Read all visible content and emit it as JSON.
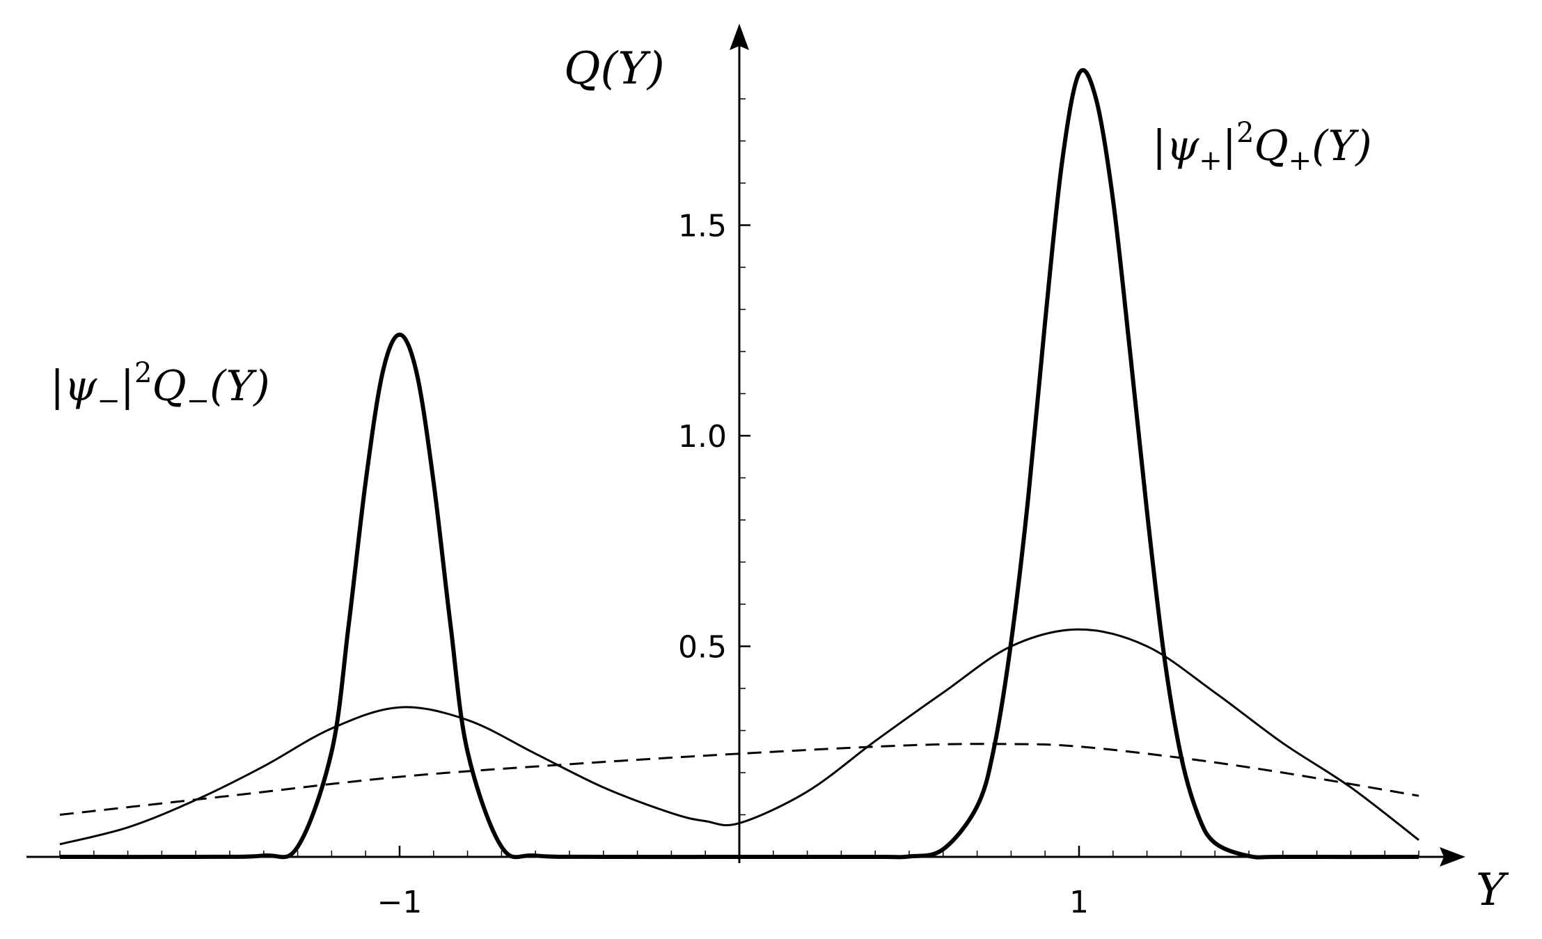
{
  "chart_data": {
    "type": "line",
    "title": "",
    "xlabel": "Y",
    "ylabel": "Q(Y)",
    "xlim": [
      -2,
      2
    ],
    "ylim": [
      0,
      1.9
    ],
    "xticks": [
      {
        "value": -1,
        "label": "−1"
      },
      {
        "value": 1,
        "label": "1"
      }
    ],
    "yticks": [
      {
        "value": 0.5,
        "label": "0.5"
      },
      {
        "value": 1.0,
        "label": "1.0"
      },
      {
        "value": 1.5,
        "label": "1.5"
      }
    ],
    "grid": false,
    "annotations": {
      "minus": {
        "pre": "|ψ",
        "sub1": "−",
        "mid": "|",
        "sup": "2",
        "q": "Q",
        "sub2": "−",
        "post": "(Y)"
      },
      "plus": {
        "pre": "|ψ",
        "sub1": "+",
        "mid": "|",
        "sup": "2",
        "q": "Q",
        "sub2": "+",
        "post": "(Y)"
      }
    },
    "series": [
      {
        "style": "thick",
        "x": [
          -2.0,
          -1.6,
          -1.4,
          -1.3,
          -1.2,
          -1.15,
          -1.1,
          -1.05,
          -1.0,
          -0.95,
          -0.9,
          -0.85,
          -0.8,
          -0.7,
          -0.6,
          -0.4,
          0.0,
          0.4,
          0.5,
          0.6,
          0.7,
          0.75,
          0.8,
          0.85,
          0.9,
          0.95,
          1.0,
          1.05,
          1.1,
          1.15,
          1.2,
          1.25,
          1.3,
          1.35,
          1.4,
          1.5,
          1.6,
          2.0
        ],
        "y": [
          0.0,
          0.0,
          0.003,
          0.024,
          0.25,
          0.55,
          0.89,
          1.15,
          1.24,
          1.15,
          0.89,
          0.55,
          0.25,
          0.024,
          0.003,
          0.0,
          0.0,
          0.0,
          0.001,
          0.018,
          0.12,
          0.26,
          0.51,
          0.85,
          1.27,
          1.65,
          1.86,
          1.8,
          1.56,
          1.2,
          0.82,
          0.48,
          0.24,
          0.1,
          0.033,
          0.002,
          0.0,
          0.0
        ]
      },
      {
        "style": "thin",
        "x": [
          -2.0,
          -1.8,
          -1.6,
          -1.4,
          -1.2,
          -1.0,
          -0.8,
          -0.6,
          -0.4,
          -0.2,
          -0.1,
          0.0,
          0.2,
          0.4,
          0.6,
          0.8,
          1.0,
          1.2,
          1.4,
          1.6,
          1.8,
          2.0
        ],
        "y": [
          0.03,
          0.07,
          0.135,
          0.215,
          0.305,
          0.355,
          0.325,
          0.245,
          0.165,
          0.104,
          0.085,
          0.08,
          0.155,
          0.275,
          0.39,
          0.5,
          0.54,
          0.5,
          0.39,
          0.27,
          0.165,
          0.04
        ]
      },
      {
        "style": "dashed",
        "x": [
          -2.0,
          -1.5,
          -1.0,
          -0.5,
          0.0,
          0.5,
          0.8,
          1.0,
          1.3,
          1.6,
          2.0
        ],
        "y": [
          0.1,
          0.145,
          0.19,
          0.22,
          0.245,
          0.265,
          0.268,
          0.262,
          0.235,
          0.2,
          0.145
        ]
      }
    ]
  }
}
